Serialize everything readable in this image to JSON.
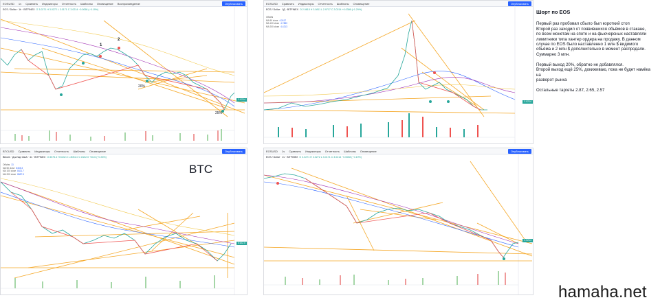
{
  "toolbar": {
    "items": [
      "1ч",
      "Сравнить",
      "Индикаторы",
      "Отчетность",
      "Шаблоны",
      "Оповещение",
      "Воспроизведение"
    ],
    "publish_label": "Опубликовать"
  },
  "panels": [
    {
      "symbol": "EOSUSD",
      "legend": "EOS / Dollar · 1h · BITFINEX",
      "ohlc": "O 3.0271 H 3.0272 L 3.0171 C 3.0214 −0.0058 (−0.19%)",
      "indicators": [],
      "last_price": "3.0214",
      "price_color": "#26a69a",
      "annotations": {
        "n1": "1",
        "n2": "2",
        "p1": "20%",
        "p2": "25%"
      }
    },
    {
      "symbol": "EOSUSD",
      "legend": "EOS / Dollar · 1Д · BITFINEX",
      "ohlc": "O 2.9815 H 3.0811 L 2.9717 C 3.0214 +0.0386 (+1.29%)",
      "indicators": [
        {
          "name": "Объём",
          "value": ""
        },
        {
          "name": "MA 50 close",
          "value": "4.2417"
        },
        {
          "name": "MA 100 close",
          "value": "4.7880"
        },
        {
          "name": "MA 200 close",
          "value": "4.4213"
        }
      ],
      "last_price": "3.0214",
      "price_color": "#26a69a"
    },
    {
      "symbol": "BTCUSD",
      "legend": "Bitcoin · Доллар США · 4ч · BITFINEX",
      "ohlc": "O 8075.4 H 8132.0 L 8051.0 C 8102.0 +26.6 (+0.33%)",
      "indicators": [
        {
          "name": "Объём",
          "value": "13"
        },
        {
          "name": "MA 50 close",
          "value": "8455.3"
        },
        {
          "name": "MA 100 close",
          "value": "8421.7"
        },
        {
          "name": "MA 200 close",
          "value": "8687.5"
        }
      ],
      "last_price": "8102.0",
      "price_color": "#26a69a",
      "big_label": "BTC"
    },
    {
      "symbol": "EOSUSD",
      "legend": "EOS / Dollar · 1ч · BITFINEX",
      "ohlc": "O 3.0271 H 3.0272 L 3.0171 C 3.0214 −0.0058 (−0.19%)",
      "indicators": [],
      "last_price": "3.0214",
      "price_color": "#26a69a"
    }
  ],
  "notes": {
    "title": "Шорт по EOS",
    "paragraphs": [
      [
        "Первый раз пробовал сбыло был короткий стоп",
        "Второй раз заходил от появившихся обьёмов в стакане,",
        "по всем монетам на споте и на фьючерсных наставляли",
        "лимитники типа хантер ордера на продажу. В данном",
        " случае по EOS было наставленно 1 млн $ видимого",
        "обьёма и 2 млн $ дополнительно в момент распродали.",
        "Суммарно 3 млн."
      ],
      [
        "Первый выход 20%, обратно не добавлялся.",
        "Второй выход ещё 25%, докиживаю, пока не будет намёка",
        "на",
        "разворот рынка"
      ],
      [
        "Остальные таргеты 2.87, 2.65, 2.57"
      ]
    ]
  },
  "watermark": "hamaha.net",
  "colors": {
    "accent": "#2962ff",
    "up": "#26a69a",
    "down": "#ef5350",
    "trendline": "#f5a623",
    "ma_blue": "#2962ff",
    "ma_purple": "#9c27b0"
  }
}
